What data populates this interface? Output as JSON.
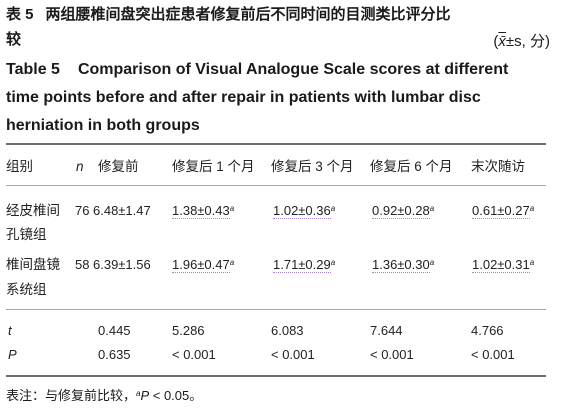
{
  "title_cn": {
    "number": "表 5",
    "line1": "两组腰椎间盘突出症患者修复前后不同时间的目测类比评分比",
    "line2": "较",
    "units_open": "(",
    "units_xbar": "x̄",
    "units_rest": "±s, 分)"
  },
  "title_en": {
    "number": "Table 5",
    "line1": "Comparison of Visual Analogue Scale scores at different",
    "line2": "time points before and after repair in patients with lumbar disc",
    "line3": "herniation in both groups"
  },
  "table": {
    "headers": [
      "组别",
      "n",
      "修复前",
      "修复后 1 个月",
      "修复后 3 个月",
      "修复后 6 个月",
      "末次随访"
    ],
    "rows": [
      {
        "group_line1": "经皮椎间",
        "group_line2": "孔镜组",
        "n": "76",
        "before": "6.48±1.47",
        "m1": "1.38±0.43",
        "m1_sup": "a",
        "m3": "1.02±0.36",
        "m3_sup": "a",
        "m6": "0.92±0.28",
        "m6_sup": "a",
        "last": "0.61±0.27",
        "last_sup": "a"
      },
      {
        "group_line1": "椎间盘镜",
        "group_line2": "系统组",
        "n": "58",
        "before": "6.39±1.56",
        "m1": "1.96±0.47",
        "m1_sup": "a",
        "m3": "1.71±0.29",
        "m3_sup": "a",
        "m6": "1.36±0.30",
        "m6_sup": "a",
        "last": "1.02±0.31",
        "last_sup": "a"
      }
    ],
    "stats": [
      {
        "label": "t",
        "before": "0.445",
        "m1": "5.286",
        "m3": "6.083",
        "m6": "7.644",
        "last": "4.766"
      },
      {
        "label": "P",
        "before": "0.635",
        "m1": "< 0.001",
        "m3": "< 0.001",
        "m6": "< 0.001",
        "last": "< 0.001"
      }
    ]
  },
  "note": {
    "prefix": "表注：与修复前比较，",
    "sup": "a",
    "p": "P",
    "suffix": " < 0.05。"
  }
}
